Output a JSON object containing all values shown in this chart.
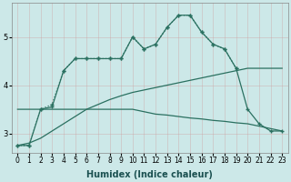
{
  "title": "",
  "xlabel": "Humidex (Indice chaleur)",
  "background_color": "#cce8e8",
  "line_color": "#2a7060",
  "grid_color": "#bbcccc",
  "xlim": [
    -0.5,
    23.5
  ],
  "ylim": [
    2.6,
    5.7
  ],
  "yticks": [
    3,
    4,
    5
  ],
  "xticks": [
    0,
    1,
    2,
    3,
    4,
    5,
    6,
    7,
    8,
    9,
    10,
    11,
    12,
    13,
    14,
    15,
    16,
    17,
    18,
    19,
    20,
    21,
    22,
    23
  ],
  "series": [
    {
      "x": [
        0,
        1,
        2,
        3,
        4,
        5,
        6,
        7,
        8,
        9,
        10,
        11,
        12,
        13,
        14,
        15,
        16,
        17,
        18,
        19
      ],
      "y": [
        2.75,
        2.75,
        3.5,
        3.6,
        4.3,
        4.55,
        4.55,
        4.55,
        4.55,
        4.55,
        5.0,
        4.75,
        4.85,
        5.2,
        5.45,
        5.45,
        5.1,
        4.85,
        4.75,
        4.35
      ],
      "marker": "+",
      "linestyle": "dotted"
    },
    {
      "x": [
        0,
        1,
        2,
        3,
        4,
        5,
        6,
        7,
        8,
        9,
        10,
        11,
        12,
        13,
        14,
        15,
        16,
        17,
        18,
        19,
        20,
        21,
        22,
        23
      ],
      "y": [
        2.75,
        2.75,
        3.5,
        3.55,
        4.3,
        4.55,
        4.55,
        4.55,
        4.55,
        4.55,
        5.0,
        4.75,
        4.85,
        5.2,
        5.45,
        5.45,
        5.1,
        4.85,
        4.75,
        4.35,
        3.5,
        3.2,
        3.05,
        3.05
      ],
      "marker": "+",
      "linestyle": "solid"
    },
    {
      "x": [
        0,
        1,
        2,
        3,
        4,
        5,
        6,
        7,
        8,
        9,
        10,
        11,
        12,
        13,
        14,
        15,
        16,
        17,
        18,
        19,
        20,
        21,
        22,
        23
      ],
      "y": [
        3.5,
        3.5,
        3.5,
        3.5,
        3.5,
        3.5,
        3.5,
        3.5,
        3.5,
        3.5,
        3.5,
        3.45,
        3.4,
        3.38,
        3.35,
        3.32,
        3.3,
        3.27,
        3.25,
        3.22,
        3.2,
        3.15,
        3.1,
        3.05
      ],
      "marker": null,
      "linestyle": "solid"
    },
    {
      "x": [
        0,
        1,
        2,
        3,
        4,
        5,
        6,
        7,
        8,
        9,
        10,
        11,
        12,
        13,
        14,
        15,
        16,
        17,
        18,
        19,
        20,
        21,
        22,
        23
      ],
      "y": [
        2.75,
        2.8,
        2.9,
        3.05,
        3.2,
        3.35,
        3.5,
        3.6,
        3.7,
        3.78,
        3.85,
        3.9,
        3.95,
        4.0,
        4.05,
        4.1,
        4.15,
        4.2,
        4.25,
        4.3,
        4.35,
        4.35,
        4.35,
        4.35
      ],
      "marker": null,
      "linestyle": "solid"
    }
  ]
}
